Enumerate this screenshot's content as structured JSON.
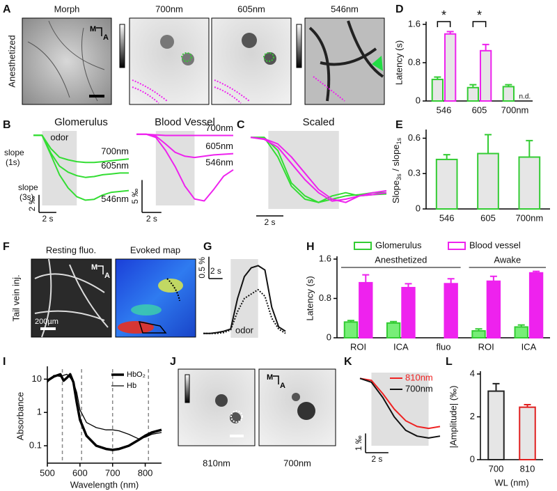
{
  "panel_letters": [
    "A",
    "B",
    "C",
    "D",
    "E",
    "F",
    "G",
    "H",
    "I",
    "J",
    "K",
    "L"
  ],
  "image_panels": {
    "A": {
      "ylabel": "Anesthetized",
      "titles": [
        "Morph",
        "700nm",
        "605nm",
        "546nm"
      ],
      "orientation": [
        "M",
        "A"
      ]
    },
    "F": {
      "ylabel": "Tail vein inj.",
      "titles": [
        "Resting fluo.",
        "Evoked map"
      ],
      "orientation": [
        "M",
        "A"
      ],
      "scale": "200µm"
    },
    "J": {
      "labels": [
        "810nm",
        "700nm"
      ],
      "orientation": [
        "M",
        "A"
      ]
    }
  },
  "chart_data": [
    {
      "type": "bar",
      "ylabel": "Latency (s)",
      "categories": [
        "546",
        "605",
        "700nm"
      ],
      "series": [
        {
          "color": "#33cc33",
          "fill": "#e6e6e6",
          "values": [
            0.45,
            0.28,
            0.3
          ],
          "errors": [
            0.05,
            0.06,
            0.04
          ]
        },
        {
          "color": "#ee22ee",
          "fill": "#e6e6e6",
          "values": [
            1.4,
            1.05,
            null
          ],
          "errors": [
            0.05,
            0.13,
            null
          ]
        }
      ],
      "ylim": [
        0,
        1.6
      ],
      "yticks": [
        0,
        0.8,
        1.6
      ],
      "annotations": [
        "*",
        "*",
        "n.d."
      ]
    },
    {
      "type": "bar",
      "ylabel": {
        "main1": "Slope",
        "sub1": "3s",
        "main2": " / slope",
        "sub2": "1s"
      },
      "categories": [
        "546",
        "605",
        "700nm"
      ],
      "series": [
        {
          "color": "#33cc33",
          "fill": "#e6e6e6",
          "values": [
            0.42,
            0.47,
            0.44
          ],
          "errors": [
            0.04,
            0.16,
            0.14
          ]
        }
      ],
      "ylim": [
        0,
        0.65
      ],
      "yticks": [
        0,
        0.3,
        0.6
      ]
    },
    {
      "type": "bar",
      "ylabel": "Latency (s)",
      "categories": [
        "ROI",
        "ICA",
        "fluo",
        "ROI",
        "ICA"
      ],
      "groups": [
        "Anesthetized",
        "Awake"
      ],
      "series": [
        {
          "name": "Glomerulus",
          "color": "#33cc33",
          "fill": "#77ee77",
          "values": [
            0.32,
            0.3,
            null,
            0.14,
            0.22
          ],
          "errors": [
            0.03,
            0.03,
            null,
            0.04,
            0.04
          ]
        },
        {
          "name": "Blood vessel",
          "color": "#ee22ee",
          "fill": "#ee22ee",
          "values": [
            1.12,
            1.02,
            1.1,
            1.15,
            1.32
          ],
          "errors": [
            0.16,
            0.08,
            0.1,
            0.1,
            0.03
          ]
        }
      ],
      "ylim": [
        0,
        1.6
      ],
      "yticks": [
        0,
        0.8,
        1.6
      ]
    },
    {
      "type": "line",
      "log_y": true,
      "xlabel": "Wavelength (nm)",
      "ylabel": "Absorbance",
      "legend": "upper right",
      "x": [
        500,
        520,
        540,
        550,
        560,
        570,
        580,
        590,
        600,
        620,
        650,
        680,
        700,
        720,
        750,
        780,
        800,
        820,
        850
      ],
      "series": [
        {
          "name": "HbO₂",
          "color": "#000000",
          "values": [
            9,
            12,
            14,
            9,
            11,
            14,
            8,
            2,
            0.6,
            0.2,
            0.1,
            0.08,
            0.075,
            0.08,
            0.1,
            0.15,
            0.2,
            0.25,
            0.3
          ]
        },
        {
          "name": "Hb",
          "color": "#000000",
          "values": [
            8,
            13,
            12,
            13,
            14,
            11,
            8,
            4,
            1.2,
            0.5,
            0.35,
            0.3,
            0.3,
            0.28,
            0.22,
            0.16,
            0.18,
            0.22,
            0.25
          ]
        }
      ],
      "xlim": [
        500,
        850
      ],
      "xticks": [
        500,
        600,
        700,
        800
      ],
      "ylim": [
        0.03,
        20
      ],
      "yticks": [
        0.1,
        1,
        10
      ],
      "vlines": [
        546,
        605,
        700,
        810
      ]
    },
    {
      "type": "bar",
      "ylabel": "|Amplitude| (‰)",
      "xlabel": "WL (nm)",
      "categories": [
        "700",
        "810"
      ],
      "colors": [
        "#222222",
        "#e02020"
      ],
      "fill": "#e6e6e6",
      "values": [
        3.2,
        2.45
      ],
      "errors": [
        0.35,
        0.12
      ],
      "ylim": [
        0,
        4
      ],
      "yticks": [
        0,
        2,
        4
      ]
    },
    {
      "type": "line",
      "title": "Glomerulus",
      "x": [
        0,
        1,
        2,
        3,
        4,
        5,
        6,
        7,
        8,
        9,
        10,
        11
      ],
      "series": [
        {
          "name": "700nm",
          "color": "#33dd33",
          "values": [
            0,
            0,
            -1.5,
            -2.5,
            -2.8,
            -3,
            -3.1,
            -3.1,
            -3,
            -2.9,
            -2.8,
            -2.7
          ]
        },
        {
          "name": "605nm",
          "color": "#33dd33",
          "values": [
            0,
            0,
            -2,
            -3.5,
            -4.2,
            -4.6,
            -4.8,
            -4.7,
            -4.5,
            -4.4,
            -4.3,
            -4.3
          ]
        },
        {
          "name": "546nm",
          "color": "#33dd33",
          "values": [
            0,
            0,
            -2.2,
            -4.5,
            -6,
            -7,
            -7.4,
            -7.3,
            -6.8,
            -6.5,
            -6.4,
            -6.3
          ]
        }
      ],
      "xlim": [
        0,
        11
      ],
      "ylim": [
        -8,
        0.5
      ],
      "shade": [
        1,
        5
      ],
      "shade_label": "odor",
      "annotations": [
        "slope",
        "(1s)",
        "slope",
        "(3s)"
      ],
      "scalebar": {
        "x": 2,
        "x_label": "2 s",
        "y": 2,
        "y_label": "2 ‰"
      }
    },
    {
      "type": "line",
      "title": "Blood Vessel",
      "x": [
        0,
        1,
        2,
        3,
        4,
        5,
        6,
        7,
        8,
        9,
        10
      ],
      "series": [
        {
          "name": "700nm",
          "color": "#ee22ee",
          "values": [
            0,
            0,
            -0.1,
            -0.2,
            -0.2,
            -0.2,
            -0.2,
            -0.2,
            -0.2,
            -0.2,
            -0.2
          ]
        },
        {
          "name": "605nm",
          "color": "#ee22ee",
          "values": [
            0,
            0,
            -0.3,
            -1.5,
            -2.8,
            -3.4,
            -3.6,
            -3.4,
            -3.2,
            -3.1,
            -3
          ]
        },
        {
          "name": "546nm",
          "color": "#ee22ee",
          "values": [
            0,
            0,
            -0.5,
            -2.5,
            -5,
            -8,
            -10,
            -10.3,
            -8.5,
            -6.5,
            -5.5
          ]
        }
      ],
      "xlim": [
        0,
        10
      ],
      "ylim": [
        -11,
        0.5
      ],
      "shade": [
        2,
        6
      ],
      "scalebar": {
        "x": 2,
        "x_label": "2 s",
        "y": 5,
        "y_label": "5 ‰"
      }
    },
    {
      "type": "line",
      "title": "Scaled",
      "x": [
        0,
        1,
        2,
        3,
        4,
        5,
        6,
        7,
        8,
        9,
        10
      ],
      "series": [
        {
          "color": "#33dd33",
          "values": [
            0,
            0,
            -0.2,
            -0.7,
            -0.9,
            -1,
            -0.95,
            -0.9,
            -0.88,
            -0.85,
            -0.85
          ]
        },
        {
          "color": "#33dd33",
          "values": [
            0,
            0,
            -0.3,
            -0.75,
            -0.95,
            -1,
            -0.9,
            -0.85,
            -0.9,
            -0.88,
            -0.87
          ]
        },
        {
          "color": "#ee22ee",
          "values": [
            0,
            -0.02,
            -0.1,
            -0.3,
            -0.55,
            -0.8,
            -0.95,
            -1,
            -0.9,
            -0.85,
            -0.82
          ]
        },
        {
          "color": "#ee22ee",
          "values": [
            0,
            -0.03,
            -0.15,
            -0.4,
            -0.65,
            -0.85,
            -0.98,
            -0.95,
            -0.9,
            -0.88,
            -0.85
          ]
        }
      ],
      "xlim": [
        0,
        10
      ],
      "ylim": [
        -1.1,
        0.1
      ],
      "shade": [
        1.3,
        6.5
      ],
      "scalebar": {
        "x": 2,
        "x_label": "2 s"
      }
    },
    {
      "type": "line",
      "x": [
        0,
        1,
        2,
        3,
        4,
        5,
        6,
        7,
        8,
        9,
        10,
        11,
        12
      ],
      "series": [
        {
          "color": "#111111",
          "values": [
            0,
            0,
            0.02,
            0.05,
            0.1,
            0.8,
            1.3,
            1.5,
            1.55,
            1.45,
            0.6,
            0.15,
            0.05
          ]
        },
        {
          "color": "#111111",
          "style": "dotted",
          "values": [
            0,
            0,
            0,
            0.02,
            0.08,
            0.5,
            0.8,
            0.9,
            1,
            0.85,
            0.35,
            0.1,
            0
          ]
        }
      ],
      "xlim": [
        0,
        12
      ],
      "ylim": [
        -0.1,
        1.7
      ],
      "shade": [
        4,
        8
      ],
      "shade_label": "odor",
      "scalebar": {
        "x": 2,
        "x_label": "2 s",
        "y": 0.5,
        "y_label": "0.5 %"
      }
    },
    {
      "type": "line",
      "legend": "upper right",
      "x": [
        0,
        1,
        2,
        3,
        4,
        5,
        6,
        7
      ],
      "series": [
        {
          "name": "810nm",
          "color": "#ee2222",
          "values": [
            0,
            -0.1,
            -0.8,
            -1.6,
            -2.2,
            -2.5,
            -2.6,
            -2.5
          ]
        },
        {
          "name": "700nm",
          "color": "#111111",
          "values": [
            0,
            -0.2,
            -1,
            -2,
            -2.7,
            -3,
            -3.1,
            -3
          ]
        }
      ],
      "xlim": [
        0,
        7
      ],
      "ylim": [
        -3.5,
        0.3
      ],
      "shade": [
        1,
        6
      ],
      "scalebar": {
        "x": 2,
        "x_label": "2 s",
        "y": 1,
        "y_label": "1 ‰"
      }
    }
  ]
}
